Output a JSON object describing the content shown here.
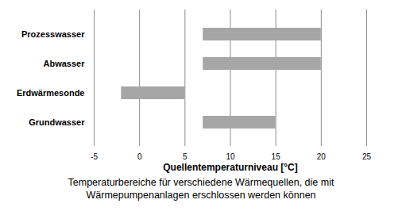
{
  "chart_data": {
    "type": "bar",
    "orientation": "horizontal",
    "caption": "Temperaturbereiche für verschiedene Wärmequellen, die mit Wärmepumpenanlagen erschlossen werden können",
    "x_label": "Quellentemperaturniveau [°C]",
    "categories": [
      "Prozesswasser",
      "Abwasser",
      "Erdwärmesonde",
      "Grundwasser"
    ],
    "values": [
      [
        7,
        20
      ],
      [
        7,
        20
      ],
      [
        -2,
        5
      ],
      [
        7,
        15
      ]
    ],
    "color": "#a6a6a6",
    "xlim": [
      -5,
      25
    ],
    "xticks": [
      -5,
      0,
      5,
      10,
      15,
      20,
      25
    ],
    "grid": true
  }
}
